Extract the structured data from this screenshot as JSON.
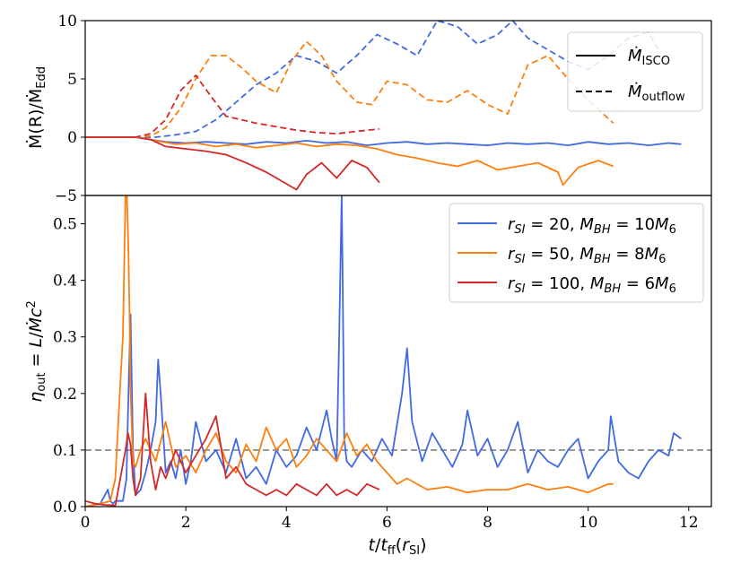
{
  "chart_data": [
    {
      "panel": "top",
      "type": "line",
      "ylabel": "Ṁ(R)/Ṁ_Edd",
      "xlim": [
        0,
        12.45
      ],
      "ylim": [
        -5,
        10
      ],
      "yticks": [
        -5,
        0,
        5,
        10
      ],
      "ytick_labels": [
        "−5",
        "0",
        "5",
        "10"
      ],
      "legend": {
        "position": "top-right",
        "entries": [
          {
            "style": "solid",
            "label": "Ṁ_ISCO"
          },
          {
            "style": "dashed",
            "label": "Ṁ_outflow"
          }
        ]
      },
      "series": [
        {
          "name": "r_SI=20, M_BH=10M6 inflow",
          "color": "#4169e1",
          "style": "solid",
          "x": [
            0,
            0.5,
            1.0,
            1.3,
            1.6,
            2.0,
            2.4,
            2.8,
            3.2,
            3.6,
            4.0,
            4.4,
            4.8,
            5.2,
            5.6,
            6.0,
            6.4,
            6.8,
            7.2,
            7.6,
            8.0,
            8.4,
            8.8,
            9.2,
            9.6,
            10.0,
            10.4,
            10.8,
            11.2,
            11.6,
            11.85
          ],
          "y": [
            0,
            0,
            0,
            -0.2,
            -0.4,
            -0.5,
            -0.4,
            -0.5,
            -0.6,
            -0.4,
            -0.5,
            -0.3,
            -0.5,
            -0.4,
            -0.7,
            -0.5,
            -0.4,
            -0.6,
            -0.5,
            -0.6,
            -0.7,
            -0.5,
            -0.6,
            -0.5,
            -0.7,
            -0.4,
            -0.6,
            -0.5,
            -0.7,
            -0.5,
            -0.6
          ]
        },
        {
          "name": "r_SI=50, M_BH=8M6 inflow",
          "color": "#ff7f0e",
          "style": "solid",
          "x": [
            0,
            0.5,
            1.0,
            1.4,
            1.8,
            2.2,
            2.6,
            3.0,
            3.4,
            3.8,
            4.2,
            4.6,
            5.0,
            5.4,
            5.8,
            6.2,
            6.6,
            7.0,
            7.4,
            7.8,
            8.2,
            8.6,
            9.0,
            9.4,
            9.5,
            9.8,
            10.2,
            10.5
          ],
          "y": [
            0,
            0,
            0,
            -0.3,
            -0.6,
            -0.5,
            -0.8,
            -0.6,
            -0.9,
            -0.7,
            -0.5,
            -0.8,
            -0.6,
            -0.7,
            -1.0,
            -1.5,
            -1.8,
            -2.2,
            -2.5,
            -2.0,
            -2.8,
            -2.5,
            -2.2,
            -3.0,
            -4.1,
            -2.6,
            -2.0,
            -2.5
          ]
        },
        {
          "name": "r_SI=100, M_BH=6M6 inflow",
          "color": "#d62728",
          "style": "solid",
          "x": [
            0,
            0.5,
            1.0,
            1.3,
            1.6,
            2.0,
            2.4,
            2.8,
            3.2,
            3.6,
            4.0,
            4.2,
            4.4,
            4.7,
            5.0,
            5.3,
            5.6,
            5.85
          ],
          "y": [
            0,
            0,
            0,
            -0.2,
            -0.8,
            -1.0,
            -1.2,
            -1.5,
            -2.2,
            -3.0,
            -4.0,
            -4.5,
            -3.2,
            -2.2,
            -3.5,
            -2.0,
            -2.6,
            -3.9
          ]
        },
        {
          "name": "r_SI=20, M_BH=10M6 outflow",
          "color": "#4169e1",
          "style": "dashed",
          "x": [
            0,
            0.5,
            1.0,
            1.4,
            1.8,
            2.2,
            2.6,
            3.0,
            3.4,
            3.8,
            4.2,
            4.6,
            5.0,
            5.4,
            5.8,
            6.2,
            6.6,
            7.0,
            7.4,
            7.8,
            8.2,
            8.5,
            8.8,
            9.2,
            9.6,
            10.0,
            10.4,
            10.8,
            11.2,
            11.4
          ],
          "y": [
            0,
            0,
            0,
            0,
            0.2,
            0.5,
            1.5,
            3.0,
            4.5,
            5.5,
            7.0,
            6.5,
            5.5,
            7.0,
            8.8,
            8.0,
            7.0,
            10.0,
            9.5,
            8.0,
            8.8,
            10.0,
            8.5,
            7.5,
            6.5,
            5.8,
            7.0,
            8.5,
            9.0,
            7.5
          ]
        },
        {
          "name": "r_SI=50, M_BH=8M6 outflow",
          "color": "#ff7f0e",
          "style": "dashed",
          "x": [
            0,
            0.5,
            1.0,
            1.3,
            1.6,
            1.9,
            2.2,
            2.5,
            2.8,
            3.1,
            3.4,
            3.8,
            4.1,
            4.4,
            4.7,
            5.0,
            5.4,
            5.7,
            6.0,
            6.4,
            6.8,
            7.2,
            7.6,
            8.0,
            8.4,
            8.8,
            9.2,
            9.6,
            10.0,
            10.5
          ],
          "y": [
            0,
            0,
            0,
            0.1,
            0.8,
            2.5,
            5.0,
            7.0,
            7.0,
            6.0,
            4.8,
            3.8,
            6.5,
            8.2,
            7.0,
            4.8,
            3.0,
            2.8,
            4.8,
            4.5,
            3.2,
            3.0,
            4.0,
            2.8,
            2.0,
            6.2,
            7.0,
            5.0,
            3.2,
            1.2
          ]
        },
        {
          "name": "r_SI=100, M_BH=6M6 outflow",
          "color": "#d62728",
          "style": "dashed",
          "x": [
            0,
            0.5,
            1.0,
            1.3,
            1.6,
            1.9,
            2.2,
            2.5,
            2.8,
            3.1,
            3.4,
            3.8,
            4.2,
            4.6,
            5.0,
            5.4,
            5.85
          ],
          "y": [
            0,
            0,
            0,
            0.3,
            1.5,
            4.0,
            5.3,
            3.5,
            1.8,
            1.5,
            1.2,
            0.9,
            0.6,
            0.4,
            0.3,
            0.5,
            0.7
          ]
        }
      ]
    },
    {
      "panel": "bottom",
      "type": "line",
      "xlabel": "t/t_ff(r_SI)",
      "ylabel": "η_out = L/Ṁc²",
      "xlim": [
        0,
        12.45
      ],
      "ylim": [
        0,
        0.55
      ],
      "xticks": [
        0,
        2,
        4,
        6,
        8,
        10,
        12
      ],
      "yticks": [
        0.0,
        0.1,
        0.2,
        0.3,
        0.4,
        0.5
      ],
      "ytick_labels": [
        "0.0",
        "0.1",
        "0.2",
        "0.3",
        "0.4",
        "0.5"
      ],
      "reference_line": 0.1,
      "legend": {
        "position": "top-right",
        "entries": [
          {
            "color": "#4169e1",
            "label": "r_SI = 20, M_BH = 10M_6"
          },
          {
            "color": "#ff7f0e",
            "label": "r_SI = 50, M_BH = 8M_6"
          },
          {
            "color": "#d62728",
            "label": "r_SI = 100, M_BH = 6M_6"
          }
        ]
      },
      "series": [
        {
          "name": "r_SI=20, M_BH=10M6",
          "color": "#4169e1",
          "x": [
            0,
            0.3,
            0.45,
            0.5,
            0.55,
            0.6,
            0.75,
            0.82,
            0.86,
            0.9,
            0.95,
            1.0,
            1.1,
            1.2,
            1.3,
            1.4,
            1.45,
            1.5,
            1.6,
            1.7,
            1.8,
            1.9,
            2.0,
            2.1,
            2.2,
            2.4,
            2.6,
            2.8,
            3.0,
            3.2,
            3.4,
            3.6,
            3.8,
            4.0,
            4.2,
            4.4,
            4.6,
            4.8,
            4.9,
            5.0,
            5.05,
            5.1,
            5.12,
            5.15,
            5.2,
            5.3,
            5.5,
            5.7,
            5.9,
            6.1,
            6.3,
            6.4,
            6.5,
            6.7,
            6.9,
            7.1,
            7.3,
            7.5,
            7.6,
            7.8,
            8.0,
            8.2,
            8.4,
            8.6,
            8.8,
            9.0,
            9.2,
            9.4,
            9.6,
            9.8,
            10.0,
            10.2,
            10.4,
            10.45,
            10.6,
            10.8,
            11.0,
            11.2,
            11.4,
            11.6,
            11.7,
            11.85
          ],
          "y": [
            0,
            0.005,
            0.03,
            0.01,
            0.005,
            0.01,
            0.01,
            0.05,
            0.2,
            0.34,
            0.1,
            0.02,
            0.03,
            0.06,
            0.1,
            0.15,
            0.26,
            0.2,
            0.06,
            0.08,
            0.05,
            0.1,
            0.04,
            0.08,
            0.15,
            0.08,
            0.1,
            0.06,
            0.12,
            0.05,
            0.07,
            0.04,
            0.1,
            0.07,
            0.09,
            0.14,
            0.1,
            0.17,
            0.12,
            0.08,
            0.3,
            0.55,
            0.4,
            0.12,
            0.08,
            0.07,
            0.1,
            0.08,
            0.12,
            0.09,
            0.2,
            0.28,
            0.15,
            0.08,
            0.13,
            0.1,
            0.07,
            0.11,
            0.17,
            0.09,
            0.12,
            0.07,
            0.1,
            0.15,
            0.06,
            0.1,
            0.08,
            0.07,
            0.1,
            0.12,
            0.05,
            0.08,
            0.1,
            0.16,
            0.08,
            0.06,
            0.05,
            0.08,
            0.1,
            0.09,
            0.13,
            0.12
          ]
        },
        {
          "name": "r_SI=50, M_BH=8M6",
          "color": "#ff7f0e",
          "x": [
            0,
            0.3,
            0.5,
            0.6,
            0.7,
            0.75,
            0.8,
            0.83,
            0.86,
            0.88,
            0.9,
            0.95,
            1.0,
            1.1,
            1.2,
            1.4,
            1.6,
            1.8,
            2.0,
            2.2,
            2.4,
            2.6,
            2.8,
            3.0,
            3.2,
            3.4,
            3.6,
            3.8,
            4.0,
            4.2,
            4.4,
            4.6,
            4.8,
            5.0,
            5.2,
            5.4,
            5.6,
            5.8,
            6.0,
            6.2,
            6.4,
            6.8,
            7.2,
            7.6,
            8.0,
            8.4,
            8.8,
            9.2,
            9.6,
            10.0,
            10.4,
            10.5
          ],
          "y": [
            0,
            0.005,
            0.01,
            0.05,
            0.22,
            0.3,
            0.55,
            0.55,
            0.45,
            0.35,
            0.2,
            0.08,
            0.07,
            0.1,
            0.12,
            0.08,
            0.15,
            0.07,
            0.09,
            0.06,
            0.1,
            0.13,
            0.08,
            0.06,
            0.11,
            0.08,
            0.14,
            0.1,
            0.12,
            0.07,
            0.09,
            0.12,
            0.1,
            0.08,
            0.13,
            0.09,
            0.11,
            0.08,
            0.06,
            0.04,
            0.05,
            0.03,
            0.035,
            0.025,
            0.03,
            0.03,
            0.04,
            0.03,
            0.035,
            0.025,
            0.04,
            0.04
          ]
        },
        {
          "name": "r_SI=100, M_BH=6M6",
          "color": "#d62728",
          "x": [
            0,
            0.2,
            0.4,
            0.6,
            0.8,
            0.85,
            0.9,
            0.95,
            1.0,
            1.1,
            1.2,
            1.3,
            1.4,
            1.5,
            1.6,
            1.8,
            2.0,
            2.2,
            2.4,
            2.6,
            2.8,
            3.0,
            3.2,
            3.4,
            3.6,
            3.8,
            4.0,
            4.2,
            4.4,
            4.6,
            4.8,
            5.0,
            5.2,
            5.4,
            5.6,
            5.85
          ],
          "y": [
            0.01,
            0.005,
            0.003,
            0.002,
            0.1,
            0.13,
            0.11,
            0.05,
            0.02,
            0.05,
            0.2,
            0.08,
            0.03,
            0.07,
            0.05,
            0.1,
            0.06,
            0.09,
            0.12,
            0.16,
            0.05,
            0.07,
            0.04,
            0.03,
            0.02,
            0.03,
            0.02,
            0.04,
            0.03,
            0.02,
            0.04,
            0.02,
            0.03,
            0.02,
            0.04,
            0.03
          ]
        }
      ]
    }
  ],
  "xtick_labels": [
    "0",
    "2",
    "4",
    "6",
    "8",
    "10",
    "12"
  ]
}
